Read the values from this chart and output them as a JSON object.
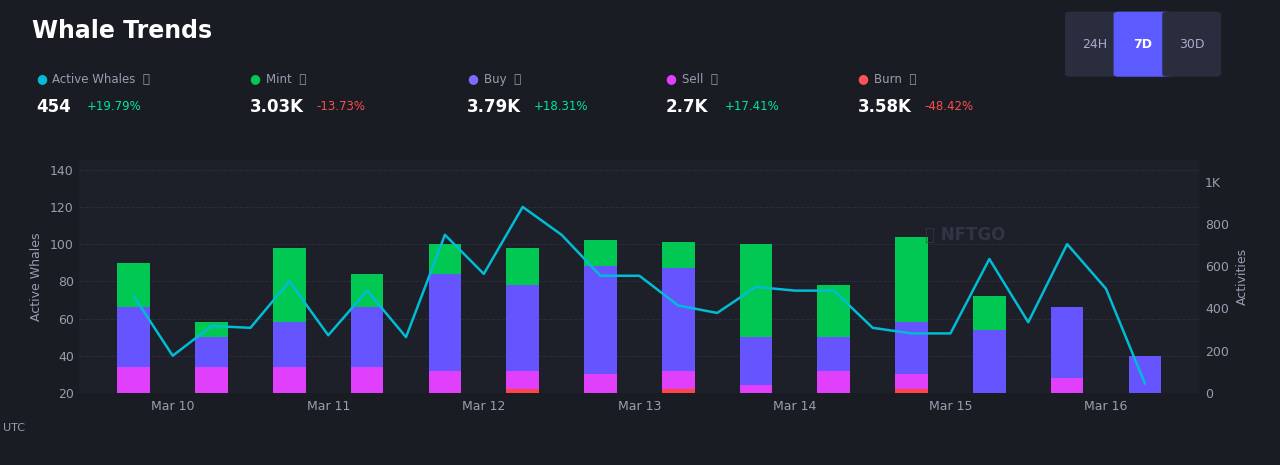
{
  "title": "Whale Trends",
  "bg_color": "#1a1c24",
  "plot_bg_color": "#1e2029",
  "grid_color": "#2a2d3e",
  "text_color": "#9a9cb0",
  "title_color": "#ffffff",
  "legend": [
    {
      "label": "Active Whales",
      "value": "454",
      "change": "+19.79%",
      "change_pos": true,
      "dot_color": "#00bcd4"
    },
    {
      "label": "Mint",
      "value": "3.03K",
      "change": "-13.73%",
      "change_pos": false,
      "dot_color": "#00c853"
    },
    {
      "label": "Buy",
      "value": "3.79K",
      "change": "+18.31%",
      "change_pos": true,
      "dot_color": "#7c6bff"
    },
    {
      "label": "Sell",
      "value": "2.7K",
      "change": "+17.41%",
      "change_pos": true,
      "dot_color": "#e040fb"
    },
    {
      "label": "Burn",
      "value": "3.58K",
      "change": "-48.42%",
      "change_pos": false,
      "dot_color": "#ff5252"
    }
  ],
  "x_labels": [
    "Mar 10",
    "Mar 11",
    "Mar 12",
    "Mar 13",
    "Mar 14",
    "Mar 15",
    "Mar 16"
  ],
  "burn_vals": [
    20,
    20,
    20,
    20,
    20,
    22,
    20,
    22,
    6,
    20,
    22,
    4,
    20,
    4
  ],
  "sell_vals": [
    14,
    14,
    14,
    14,
    12,
    10,
    10,
    10,
    18,
    12,
    8,
    10,
    8,
    4
  ],
  "buy_vals": [
    32,
    16,
    24,
    32,
    52,
    46,
    58,
    55,
    26,
    18,
    28,
    40,
    38,
    32
  ],
  "mint_vals": [
    24,
    8,
    40,
    18,
    16,
    20,
    14,
    14,
    50,
    28,
    46,
    18,
    0,
    0
  ],
  "whale_x": [
    0,
    0.5,
    1,
    1.5,
    2,
    2.5,
    3,
    3.5,
    4,
    4.5,
    5,
    5.5,
    6,
    6.5,
    7,
    7.5,
    8,
    8.5,
    9,
    9.5,
    10,
    10.5,
    11,
    11.5,
    12,
    12.5,
    13
  ],
  "whale_y": [
    72,
    40,
    56,
    55,
    80,
    51,
    75,
    50,
    105,
    84,
    120,
    105,
    83,
    83,
    67,
    63,
    77,
    75,
    75,
    55,
    52,
    52,
    92,
    58,
    100,
    76,
    25
  ],
  "bar_colors": {
    "burn": "#ff4444",
    "sell": "#e040fb",
    "buy": "#6655ff",
    "mint": "#00c853"
  },
  "line_color": "#00bcd4",
  "line_width": 1.8,
  "ylim_left": [
    20,
    145
  ],
  "yticks_left": [
    20,
    40,
    60,
    80,
    100,
    120,
    140
  ],
  "ylim_right": [
    0,
    1100
  ],
  "yticks_right": [
    0,
    200,
    400,
    600,
    800,
    1000
  ],
  "ytick_right_labels": [
    "0",
    "200",
    "400",
    "600",
    "800",
    "1K"
  ],
  "left_ylabel": "Active Whales",
  "right_ylabel": "Activities",
  "time_buttons": [
    "24H",
    "7D",
    "30D"
  ],
  "active_button": "7D",
  "btn_active_bg": "#5b5bff",
  "btn_inactive_bg": "#2a2d3e",
  "btn_active_fg": "#ffffff",
  "btn_inactive_fg": "#aaaacc",
  "watermark": "NFTGO"
}
